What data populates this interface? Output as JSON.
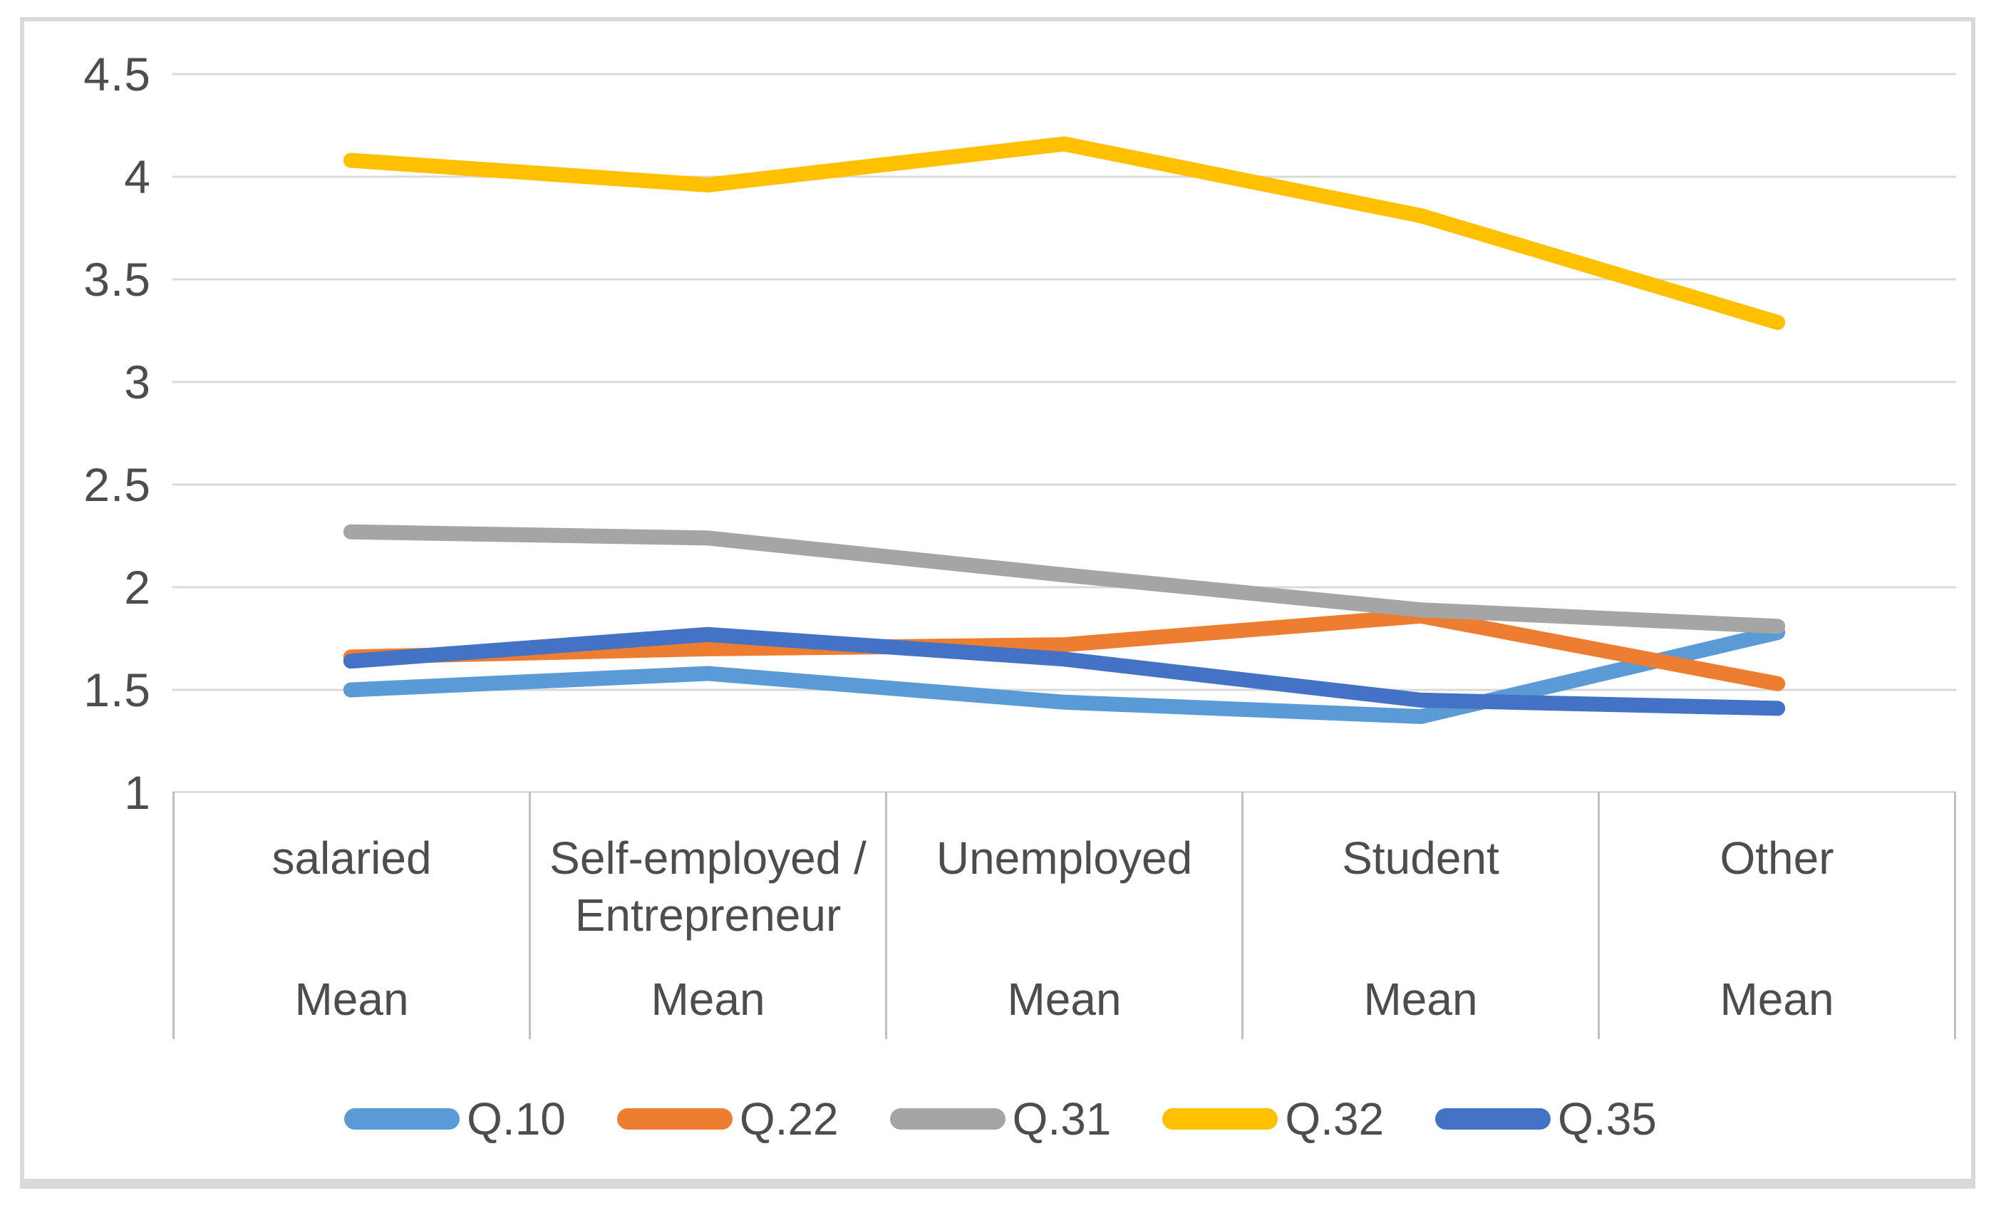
{
  "chart_data": {
    "type": "line",
    "title": "",
    "xlabel": "",
    "ylabel": "",
    "categories": [
      "salaried",
      "Self-employed / Entrepreneur",
      "Unemployed",
      "Student",
      "Other"
    ],
    "category_sublabels": [
      "Mean",
      "Mean",
      "Mean",
      "Mean",
      "Mean"
    ],
    "y_ticks": [
      4.5,
      4,
      3.5,
      3,
      2.5,
      2,
      1.5,
      1
    ],
    "ylim": [
      1,
      4.5
    ],
    "grid": "horizontal",
    "legend_position": "bottom",
    "series": [
      {
        "name": "Q.10",
        "color": "#5B9BD5",
        "values": [
          1.5,
          1.58,
          1.44,
          1.37,
          1.78
        ]
      },
      {
        "name": "Q.22",
        "color": "#ED7D31",
        "values": [
          1.66,
          1.7,
          1.72,
          1.86,
          1.53
        ]
      },
      {
        "name": "Q.31",
        "color": "#A5A5A5",
        "values": [
          2.27,
          2.24,
          2.06,
          1.89,
          1.81
        ]
      },
      {
        "name": "Q.32",
        "color": "#FFC000",
        "values": [
          4.08,
          3.96,
          4.16,
          3.81,
          3.29
        ]
      },
      {
        "name": "Q.35",
        "color": "#4472C4",
        "values": [
          1.64,
          1.77,
          1.65,
          1.45,
          1.41
        ]
      }
    ]
  },
  "colors": {
    "gridline": "#d9d9d9",
    "axis_line": "#bfbfbf",
    "text": "#4d4d4d",
    "frame_border": "#d9d9d9",
    "background": "#ffffff"
  }
}
